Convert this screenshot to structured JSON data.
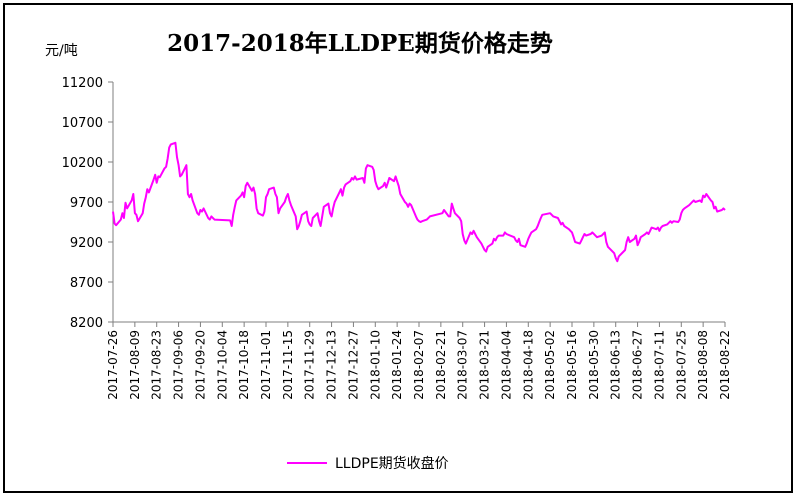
{
  "chart_data": {
    "type": "line",
    "title": "2017-2018年LLDPE期货价格走势",
    "unit_label": "元/吨",
    "y_ticks": [
      8200,
      8700,
      9200,
      9700,
      10200,
      10700,
      11200
    ],
    "ylim": [
      8200,
      11200
    ],
    "x_tick_labels": [
      "2017-07-26",
      "2017-08-09",
      "2017-08-23",
      "2017-09-06",
      "2017-09-20",
      "2017-10-04",
      "2017-10-18",
      "2017-11-01",
      "2017-11-15",
      "2017-11-29",
      "2017-12-13",
      "2017-12-27",
      "2018-01-10",
      "2018-01-24",
      "2018-02-07",
      "2018-02-21",
      "2018-03-07",
      "2018-03-21",
      "2018-04-04",
      "2018-04-18",
      "2018-05-02",
      "2018-05-16",
      "2018-05-30",
      "2018-06-13",
      "2018-06-27",
      "2018-07-11",
      "2018-07-25",
      "2018-08-08",
      "2018-08-22"
    ],
    "x_range": [
      "2017-07-26",
      "2018-08-22"
    ],
    "grid": false,
    "legend_position": "bottom-center",
    "series": [
      {
        "name": "LLDPE期货收盘价",
        "color": "#ff00ff",
        "points": [
          [
            "2017-07-26",
            9580
          ],
          [
            "2017-07-27",
            9430
          ],
          [
            "2017-07-28",
            9410
          ],
          [
            "2017-07-31",
            9480
          ],
          [
            "2017-08-01",
            9560
          ],
          [
            "2017-08-02",
            9500
          ],
          [
            "2017-08-03",
            9690
          ],
          [
            "2017-08-04",
            9620
          ],
          [
            "2017-08-07",
            9720
          ],
          [
            "2017-08-08",
            9800
          ],
          [
            "2017-08-09",
            9560
          ],
          [
            "2017-08-10",
            9540
          ],
          [
            "2017-08-11",
            9460
          ],
          [
            "2017-08-14",
            9560
          ],
          [
            "2017-08-15",
            9680
          ],
          [
            "2017-08-16",
            9760
          ],
          [
            "2017-08-17",
            9860
          ],
          [
            "2017-08-18",
            9820
          ],
          [
            "2017-08-21",
            9980
          ],
          [
            "2017-08-22",
            10040
          ],
          [
            "2017-08-23",
            9940
          ],
          [
            "2017-08-24",
            10020
          ],
          [
            "2017-08-25",
            10010
          ],
          [
            "2017-08-28",
            10120
          ],
          [
            "2017-08-29",
            10140
          ],
          [
            "2017-08-30",
            10240
          ],
          [
            "2017-08-31",
            10380
          ],
          [
            "2017-09-01",
            10420
          ],
          [
            "2017-09-04",
            10440
          ],
          [
            "2017-09-05",
            10260
          ],
          [
            "2017-09-06",
            10160
          ],
          [
            "2017-09-07",
            10020
          ],
          [
            "2017-09-08",
            10040
          ],
          [
            "2017-09-11",
            10160
          ],
          [
            "2017-09-12",
            9800
          ],
          [
            "2017-09-13",
            9760
          ],
          [
            "2017-09-14",
            9800
          ],
          [
            "2017-09-15",
            9720
          ],
          [
            "2017-09-18",
            9560
          ],
          [
            "2017-09-19",
            9540
          ],
          [
            "2017-09-20",
            9600
          ],
          [
            "2017-09-21",
            9580
          ],
          [
            "2017-09-22",
            9620
          ],
          [
            "2017-09-25",
            9500
          ],
          [
            "2017-09-26",
            9480
          ],
          [
            "2017-09-27",
            9520
          ],
          [
            "2017-09-28",
            9500
          ],
          [
            "2017-09-29",
            9480
          ],
          [
            "2017-10-09",
            9470
          ],
          [
            "2017-10-10",
            9400
          ],
          [
            "2017-10-11",
            9540
          ],
          [
            "2017-10-12",
            9640
          ],
          [
            "2017-10-13",
            9720
          ],
          [
            "2017-10-16",
            9780
          ],
          [
            "2017-10-17",
            9820
          ],
          [
            "2017-10-18",
            9760
          ],
          [
            "2017-10-19",
            9900
          ],
          [
            "2017-10-20",
            9940
          ],
          [
            "2017-10-23",
            9840
          ],
          [
            "2017-10-24",
            9880
          ],
          [
            "2017-10-25",
            9800
          ],
          [
            "2017-10-26",
            9620
          ],
          [
            "2017-10-27",
            9560
          ],
          [
            "2017-10-30",
            9530
          ],
          [
            "2017-10-31",
            9580
          ],
          [
            "2017-11-01",
            9760
          ],
          [
            "2017-11-02",
            9800
          ],
          [
            "2017-11-03",
            9860
          ],
          [
            "2017-11-06",
            9880
          ],
          [
            "2017-11-07",
            9800
          ],
          [
            "2017-11-08",
            9760
          ],
          [
            "2017-11-09",
            9560
          ],
          [
            "2017-11-10",
            9620
          ],
          [
            "2017-11-13",
            9700
          ],
          [
            "2017-11-14",
            9760
          ],
          [
            "2017-11-15",
            9800
          ],
          [
            "2017-11-16",
            9720
          ],
          [
            "2017-11-17",
            9660
          ],
          [
            "2017-11-20",
            9520
          ],
          [
            "2017-11-21",
            9360
          ],
          [
            "2017-11-22",
            9400
          ],
          [
            "2017-11-23",
            9460
          ],
          [
            "2017-11-24",
            9540
          ],
          [
            "2017-11-27",
            9580
          ],
          [
            "2017-11-28",
            9460
          ],
          [
            "2017-11-29",
            9420
          ],
          [
            "2017-11-30",
            9400
          ],
          [
            "2017-12-01",
            9500
          ],
          [
            "2017-12-04",
            9560
          ],
          [
            "2017-12-05",
            9460
          ],
          [
            "2017-12-06",
            9400
          ],
          [
            "2017-12-07",
            9520
          ],
          [
            "2017-12-08",
            9640
          ],
          [
            "2017-12-11",
            9680
          ],
          [
            "2017-12-12",
            9560
          ],
          [
            "2017-12-13",
            9520
          ],
          [
            "2017-12-14",
            9620
          ],
          [
            "2017-12-15",
            9700
          ],
          [
            "2017-12-18",
            9820
          ],
          [
            "2017-12-19",
            9860
          ],
          [
            "2017-12-20",
            9780
          ],
          [
            "2017-12-21",
            9880
          ],
          [
            "2017-12-22",
            9920
          ],
          [
            "2017-12-25",
            9960
          ],
          [
            "2017-12-26",
            10000
          ],
          [
            "2017-12-27",
            9980
          ],
          [
            "2017-12-28",
            10020
          ],
          [
            "2017-12-29",
            9980
          ],
          [
            "2018-01-02",
            10000
          ],
          [
            "2018-01-03",
            9940
          ],
          [
            "2018-01-04",
            10120
          ],
          [
            "2018-01-05",
            10160
          ],
          [
            "2018-01-08",
            10140
          ],
          [
            "2018-01-09",
            10100
          ],
          [
            "2018-01-10",
            9960
          ],
          [
            "2018-01-11",
            9900
          ],
          [
            "2018-01-12",
            9860
          ],
          [
            "2018-01-15",
            9900
          ],
          [
            "2018-01-16",
            9940
          ],
          [
            "2018-01-17",
            9880
          ],
          [
            "2018-01-18",
            9940
          ],
          [
            "2018-01-19",
            10000
          ],
          [
            "2018-01-22",
            9960
          ],
          [
            "2018-01-23",
            10020
          ],
          [
            "2018-01-24",
            9960
          ],
          [
            "2018-01-25",
            9900
          ],
          [
            "2018-01-26",
            9800
          ],
          [
            "2018-01-29",
            9700
          ],
          [
            "2018-01-30",
            9680
          ],
          [
            "2018-01-31",
            9640
          ],
          [
            "2018-02-01",
            9680
          ],
          [
            "2018-02-02",
            9660
          ],
          [
            "2018-02-05",
            9520
          ],
          [
            "2018-02-06",
            9480
          ],
          [
            "2018-02-07",
            9460
          ],
          [
            "2018-02-08",
            9450
          ],
          [
            "2018-02-09",
            9460
          ],
          [
            "2018-02-12",
            9480
          ],
          [
            "2018-02-13",
            9500
          ],
          [
            "2018-02-14",
            9520
          ],
          [
            "2018-02-22",
            9560
          ],
          [
            "2018-02-23",
            9600
          ],
          [
            "2018-02-26",
            9520
          ],
          [
            "2018-02-27",
            9520
          ],
          [
            "2018-02-28",
            9680
          ],
          [
            "2018-03-01",
            9620
          ],
          [
            "2018-03-02",
            9560
          ],
          [
            "2018-03-05",
            9500
          ],
          [
            "2018-03-06",
            9460
          ],
          [
            "2018-03-07",
            9300
          ],
          [
            "2018-03-08",
            9220
          ],
          [
            "2018-03-09",
            9180
          ],
          [
            "2018-03-12",
            9320
          ],
          [
            "2018-03-13",
            9300
          ],
          [
            "2018-03-14",
            9340
          ],
          [
            "2018-03-15",
            9300
          ],
          [
            "2018-03-16",
            9260
          ],
          [
            "2018-03-19",
            9180
          ],
          [
            "2018-03-20",
            9140
          ],
          [
            "2018-03-21",
            9100
          ],
          [
            "2018-03-22",
            9080
          ],
          [
            "2018-03-23",
            9140
          ],
          [
            "2018-03-26",
            9180
          ],
          [
            "2018-03-27",
            9240
          ],
          [
            "2018-03-28",
            9220
          ],
          [
            "2018-03-29",
            9260
          ],
          [
            "2018-03-30",
            9280
          ],
          [
            "2018-04-02",
            9280
          ],
          [
            "2018-04-03",
            9320
          ],
          [
            "2018-04-04",
            9300
          ],
          [
            "2018-04-09",
            9260
          ],
          [
            "2018-04-10",
            9220
          ],
          [
            "2018-04-11",
            9200
          ],
          [
            "2018-04-12",
            9240
          ],
          [
            "2018-04-13",
            9160
          ],
          [
            "2018-04-16",
            9140
          ],
          [
            "2018-04-17",
            9180
          ],
          [
            "2018-04-18",
            9240
          ],
          [
            "2018-04-19",
            9280
          ],
          [
            "2018-04-20",
            9320
          ],
          [
            "2018-04-23",
            9360
          ],
          [
            "2018-04-24",
            9400
          ],
          [
            "2018-04-25",
            9450
          ],
          [
            "2018-04-26",
            9500
          ],
          [
            "2018-04-27",
            9540
          ],
          [
            "2018-05-02",
            9560
          ],
          [
            "2018-05-03",
            9540
          ],
          [
            "2018-05-04",
            9520
          ],
          [
            "2018-05-07",
            9500
          ],
          [
            "2018-05-08",
            9460
          ],
          [
            "2018-05-09",
            9420
          ],
          [
            "2018-05-10",
            9440
          ],
          [
            "2018-05-11",
            9400
          ],
          [
            "2018-05-14",
            9360
          ],
          [
            "2018-05-15",
            9340
          ],
          [
            "2018-05-16",
            9320
          ],
          [
            "2018-05-17",
            9260
          ],
          [
            "2018-05-18",
            9200
          ],
          [
            "2018-05-21",
            9180
          ],
          [
            "2018-05-22",
            9220
          ],
          [
            "2018-05-23",
            9260
          ],
          [
            "2018-05-24",
            9300
          ],
          [
            "2018-05-25",
            9280
          ],
          [
            "2018-05-28",
            9300
          ],
          [
            "2018-05-29",
            9320
          ],
          [
            "2018-05-30",
            9300
          ],
          [
            "2018-05-31",
            9280
          ],
          [
            "2018-06-01",
            9260
          ],
          [
            "2018-06-04",
            9280
          ],
          [
            "2018-06-05",
            9300
          ],
          [
            "2018-06-06",
            9320
          ],
          [
            "2018-06-07",
            9200
          ],
          [
            "2018-06-08",
            9140
          ],
          [
            "2018-06-11",
            9080
          ],
          [
            "2018-06-12",
            9060
          ],
          [
            "2018-06-13",
            9000
          ],
          [
            "2018-06-14",
            8960
          ],
          [
            "2018-06-15",
            9020
          ],
          [
            "2018-06-19",
            9100
          ],
          [
            "2018-06-20",
            9200
          ],
          [
            "2018-06-21",
            9260
          ],
          [
            "2018-06-22",
            9200
          ],
          [
            "2018-06-25",
            9240
          ],
          [
            "2018-06-26",
            9280
          ],
          [
            "2018-06-27",
            9160
          ],
          [
            "2018-06-28",
            9200
          ],
          [
            "2018-06-29",
            9260
          ],
          [
            "2018-07-02",
            9300
          ],
          [
            "2018-07-03",
            9320
          ],
          [
            "2018-07-04",
            9300
          ],
          [
            "2018-07-05",
            9340
          ],
          [
            "2018-07-06",
            9380
          ],
          [
            "2018-07-09",
            9360
          ],
          [
            "2018-07-10",
            9380
          ],
          [
            "2018-07-11",
            9340
          ],
          [
            "2018-07-12",
            9380
          ],
          [
            "2018-07-13",
            9400
          ],
          [
            "2018-07-16",
            9420
          ],
          [
            "2018-07-17",
            9440
          ],
          [
            "2018-07-18",
            9460
          ],
          [
            "2018-07-19",
            9440
          ],
          [
            "2018-07-20",
            9460
          ],
          [
            "2018-07-23",
            9450
          ],
          [
            "2018-07-24",
            9480
          ],
          [
            "2018-07-25",
            9560
          ],
          [
            "2018-07-26",
            9600
          ],
          [
            "2018-07-27",
            9620
          ],
          [
            "2018-07-30",
            9660
          ],
          [
            "2018-07-31",
            9680
          ],
          [
            "2018-08-01",
            9700
          ],
          [
            "2018-08-02",
            9720
          ],
          [
            "2018-08-03",
            9700
          ],
          [
            "2018-08-06",
            9720
          ],
          [
            "2018-08-07",
            9700
          ],
          [
            "2018-08-08",
            9780
          ],
          [
            "2018-08-09",
            9760
          ],
          [
            "2018-08-10",
            9800
          ],
          [
            "2018-08-13",
            9720
          ],
          [
            "2018-08-14",
            9700
          ],
          [
            "2018-08-15",
            9620
          ],
          [
            "2018-08-16",
            9640
          ],
          [
            "2018-08-17",
            9580
          ],
          [
            "2018-08-20",
            9600
          ],
          [
            "2018-08-21",
            9620
          ],
          [
            "2018-08-22",
            9600
          ]
        ]
      }
    ]
  }
}
